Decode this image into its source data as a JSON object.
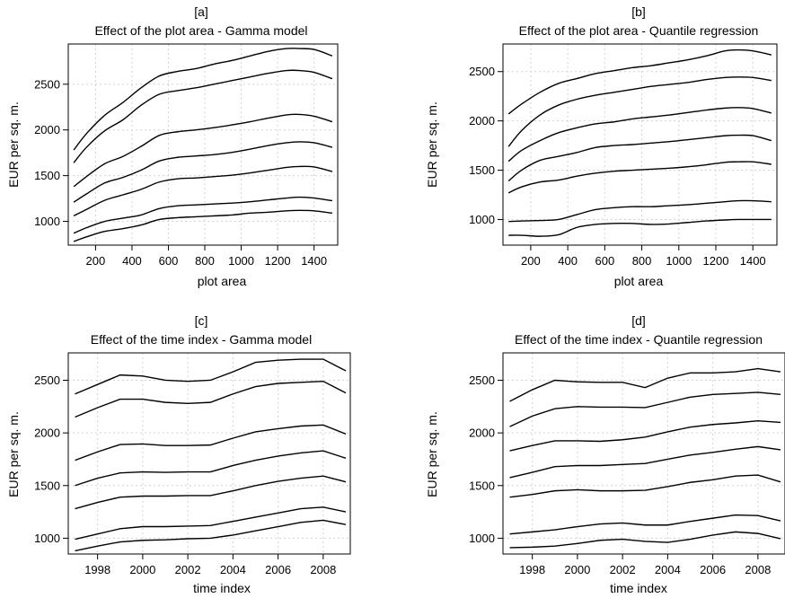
{
  "chart_data": [
    {
      "id": "a",
      "type": "line",
      "panel_label": "[a]",
      "title": "Effect of the plot area - Gamma model",
      "xlabel": "plot area",
      "ylabel": "EUR per sq. m.",
      "xlim": [
        50,
        1530
      ],
      "ylim": [
        740,
        2940
      ],
      "xticks": [
        200,
        400,
        600,
        800,
        1000,
        1200,
        1400
      ],
      "yticks": [
        1000,
        1500,
        2000,
        2500
      ],
      "grid": true,
      "x": [
        80,
        150,
        250,
        350,
        450,
        550,
        650,
        750,
        850,
        950,
        1050,
        1150,
        1250,
        1320,
        1400,
        1500
      ],
      "series": [
        {
          "values": [
            780,
            830,
            890,
            920,
            960,
            1020,
            1040,
            1050,
            1060,
            1070,
            1090,
            1100,
            1115,
            1120,
            1115,
            1090
          ]
        },
        {
          "values": [
            870,
            930,
            1000,
            1035,
            1070,
            1140,
            1170,
            1180,
            1190,
            1200,
            1215,
            1235,
            1255,
            1265,
            1255,
            1225
          ]
        },
        {
          "values": [
            1060,
            1130,
            1230,
            1290,
            1350,
            1430,
            1465,
            1475,
            1490,
            1505,
            1530,
            1560,
            1590,
            1600,
            1595,
            1545
          ]
        },
        {
          "values": [
            1210,
            1300,
            1420,
            1480,
            1560,
            1660,
            1700,
            1715,
            1730,
            1755,
            1790,
            1830,
            1860,
            1870,
            1860,
            1810
          ]
        },
        {
          "values": [
            1380,
            1490,
            1630,
            1710,
            1820,
            1940,
            1980,
            2000,
            2025,
            2055,
            2090,
            2130,
            2165,
            2170,
            2150,
            2090
          ]
        },
        {
          "values": [
            1640,
            1810,
            1990,
            2110,
            2270,
            2390,
            2430,
            2460,
            2500,
            2540,
            2580,
            2620,
            2650,
            2650,
            2630,
            2560
          ]
        },
        {
          "values": [
            1780,
            1960,
            2160,
            2300,
            2460,
            2590,
            2640,
            2670,
            2720,
            2760,
            2810,
            2860,
            2890,
            2890,
            2880,
            2810
          ]
        }
      ]
    },
    {
      "id": "b",
      "type": "line",
      "panel_label": "[b]",
      "title": "Effect of the plot area - Quantile regression",
      "xlabel": "plot area",
      "ylabel": "EUR per sq. m.",
      "xlim": [
        50,
        1530
      ],
      "ylim": [
        740,
        2780
      ],
      "xticks": [
        200,
        400,
        600,
        800,
        1000,
        1200,
        1400
      ],
      "yticks": [
        1000,
        1500,
        2000,
        2500
      ],
      "grid": true,
      "x": [
        80,
        150,
        250,
        350,
        450,
        550,
        650,
        750,
        850,
        950,
        1050,
        1150,
        1250,
        1320,
        1400,
        1500
      ],
      "series": [
        {
          "values": [
            840,
            840,
            830,
            845,
            920,
            950,
            960,
            960,
            950,
            955,
            970,
            985,
            995,
            1000,
            1000,
            1000
          ]
        },
        {
          "values": [
            980,
            985,
            990,
            1000,
            1050,
            1100,
            1120,
            1130,
            1130,
            1140,
            1150,
            1165,
            1180,
            1190,
            1190,
            1180
          ]
        },
        {
          "values": [
            1270,
            1330,
            1380,
            1400,
            1440,
            1470,
            1490,
            1500,
            1510,
            1520,
            1535,
            1555,
            1580,
            1585,
            1585,
            1560
          ]
        },
        {
          "values": [
            1390,
            1500,
            1600,
            1640,
            1680,
            1730,
            1750,
            1760,
            1775,
            1790,
            1810,
            1830,
            1850,
            1855,
            1850,
            1800
          ]
        },
        {
          "values": [
            1590,
            1700,
            1800,
            1880,
            1930,
            1970,
            1990,
            2020,
            2040,
            2060,
            2085,
            2110,
            2130,
            2135,
            2125,
            2080
          ]
        },
        {
          "values": [
            1740,
            1900,
            2060,
            2160,
            2220,
            2260,
            2290,
            2320,
            2350,
            2370,
            2390,
            2420,
            2440,
            2445,
            2440,
            2410
          ]
        },
        {
          "values": [
            2070,
            2170,
            2290,
            2380,
            2430,
            2480,
            2510,
            2540,
            2560,
            2590,
            2620,
            2660,
            2710,
            2720,
            2710,
            2670
          ]
        }
      ]
    },
    {
      "id": "c",
      "type": "line",
      "panel_label": "[c]",
      "title": "Effect of the time index - Gamma model",
      "xlabel": "time index",
      "ylabel": "EUR per sq. m.",
      "xlim": [
        1996.7,
        2009.2
      ],
      "ylim": [
        850,
        2760
      ],
      "xticks": [
        1998,
        2000,
        2002,
        2004,
        2006,
        2008
      ],
      "yticks": [
        1000,
        1500,
        2000,
        2500
      ],
      "grid": true,
      "x": [
        1997,
        1998,
        1999,
        2000,
        2001,
        2002,
        2003,
        2004,
        2005,
        2006,
        2007,
        2008,
        2009
      ],
      "series": [
        {
          "values": [
            880,
            925,
            965,
            980,
            985,
            995,
            1000,
            1030,
            1070,
            1110,
            1150,
            1170,
            1130
          ]
        },
        {
          "values": [
            990,
            1040,
            1090,
            1110,
            1110,
            1115,
            1120,
            1160,
            1200,
            1240,
            1280,
            1295,
            1250
          ]
        },
        {
          "values": [
            1280,
            1340,
            1390,
            1400,
            1400,
            1405,
            1405,
            1450,
            1500,
            1540,
            1570,
            1590,
            1535
          ]
        },
        {
          "values": [
            1500,
            1570,
            1620,
            1630,
            1625,
            1630,
            1630,
            1690,
            1740,
            1780,
            1810,
            1830,
            1760
          ]
        },
        {
          "values": [
            1740,
            1820,
            1890,
            1895,
            1880,
            1880,
            1885,
            1950,
            2010,
            2040,
            2065,
            2075,
            1990
          ]
        },
        {
          "values": [
            2150,
            2240,
            2320,
            2320,
            2290,
            2280,
            2290,
            2370,
            2440,
            2470,
            2480,
            2490,
            2380
          ]
        },
        {
          "values": [
            2370,
            2460,
            2550,
            2540,
            2500,
            2490,
            2500,
            2580,
            2670,
            2690,
            2700,
            2700,
            2590
          ]
        }
      ]
    },
    {
      "id": "d",
      "type": "line",
      "panel_label": "[d]",
      "title": "Effect of the time index - Quantile regression",
      "xlabel": "time index",
      "ylabel": "EUR per sq. m.",
      "xlim": [
        1996.7,
        2009.2
      ],
      "ylim": [
        850,
        2760
      ],
      "xticks": [
        1998,
        2000,
        2002,
        2004,
        2006,
        2008
      ],
      "yticks": [
        1000,
        1500,
        2000,
        2500
      ],
      "grid": true,
      "x": [
        1997,
        1998,
        1999,
        2000,
        2001,
        2002,
        2003,
        2004,
        2005,
        2006,
        2007,
        2008,
        2009
      ],
      "series": [
        {
          "values": [
            910,
            915,
            925,
            950,
            980,
            990,
            970,
            960,
            990,
            1030,
            1060,
            1045,
            995
          ]
        },
        {
          "values": [
            1040,
            1060,
            1080,
            1110,
            1135,
            1145,
            1125,
            1125,
            1160,
            1190,
            1220,
            1215,
            1165
          ]
        },
        {
          "values": [
            1390,
            1415,
            1450,
            1460,
            1450,
            1450,
            1455,
            1490,
            1530,
            1555,
            1590,
            1600,
            1535
          ]
        },
        {
          "values": [
            1575,
            1625,
            1680,
            1690,
            1690,
            1700,
            1710,
            1750,
            1790,
            1815,
            1845,
            1870,
            1840
          ]
        },
        {
          "values": [
            1830,
            1880,
            1925,
            1925,
            1920,
            1935,
            1960,
            2010,
            2055,
            2080,
            2095,
            2115,
            2100
          ]
        },
        {
          "values": [
            2060,
            2160,
            2230,
            2250,
            2245,
            2245,
            2240,
            2290,
            2340,
            2365,
            2375,
            2385,
            2365
          ]
        },
        {
          "values": [
            2300,
            2410,
            2500,
            2485,
            2480,
            2480,
            2430,
            2520,
            2570,
            2570,
            2580,
            2610,
            2580
          ]
        }
      ]
    }
  ]
}
